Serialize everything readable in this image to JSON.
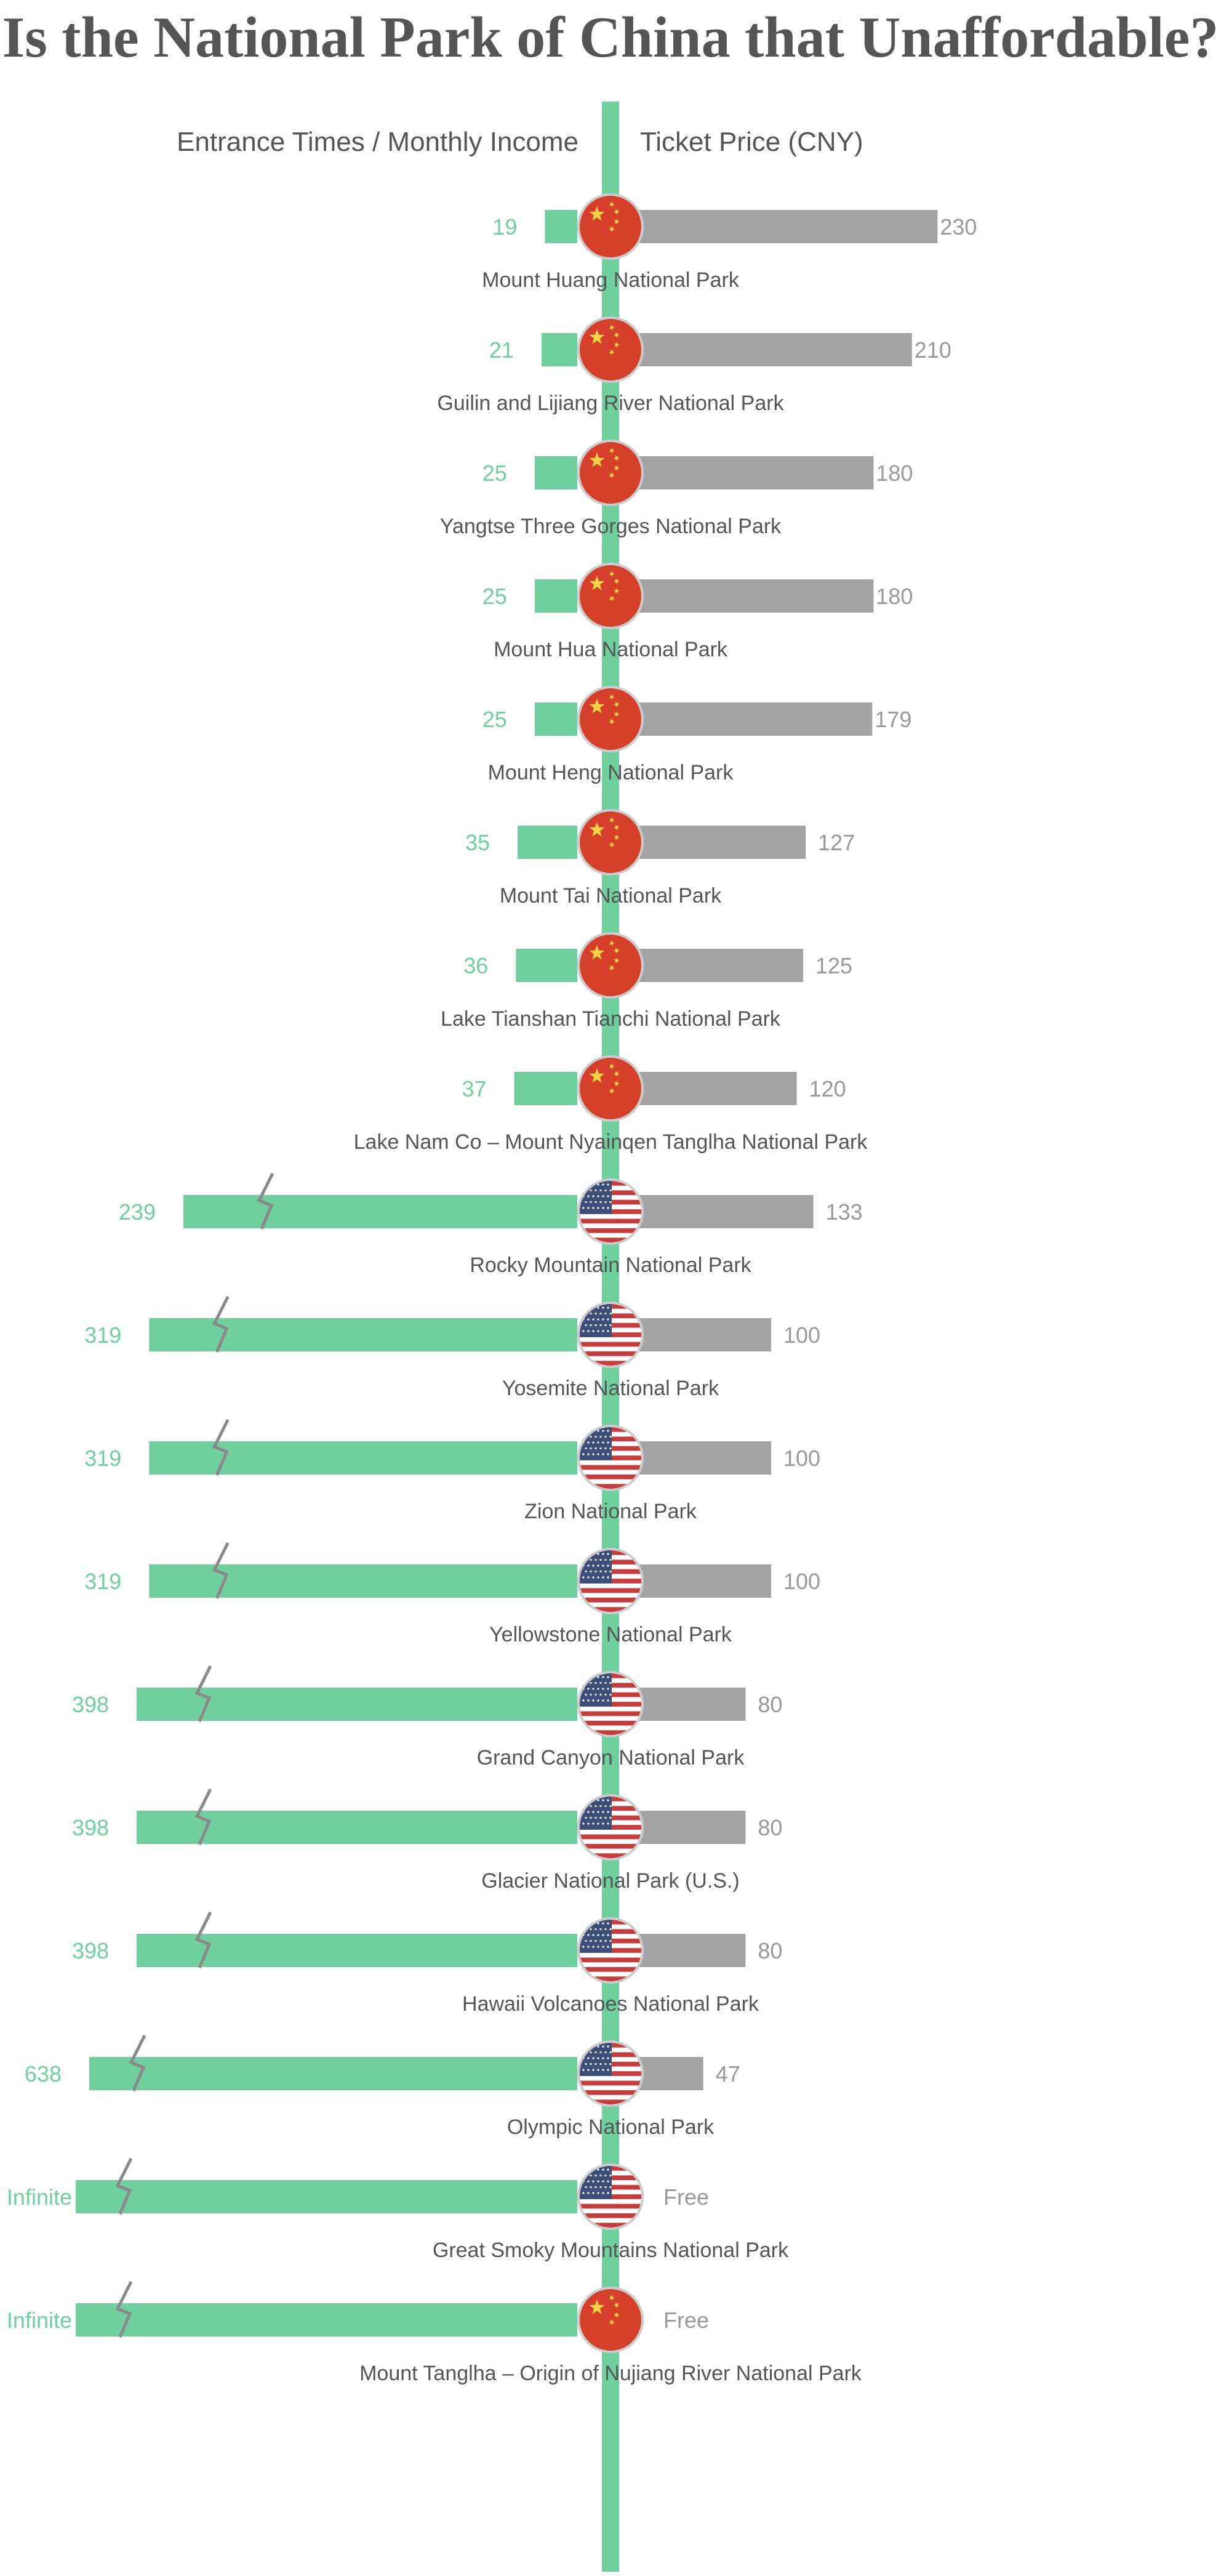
{
  "chart_data": {
    "type": "bar",
    "title": "Is the National Park of China that Unaffordable?",
    "left_header": "Entrance Times / Monthly Income",
    "right_header": "Ticket Price (CNY)",
    "colors": {
      "left_bar": "#6fcf9d",
      "right_bar": "#a3a3a3",
      "axis": "#6fcf9d",
      "title": "#555555"
    },
    "categories": [
      "Mount Huang National Park",
      "Guilin and Lijiang River National Park",
      "Yangtse Three Gorges National Park",
      "Mount Hua National Park",
      "Mount Heng National Park",
      "Mount Tai National Park",
      "Lake Tianshan Tianchi National Park",
      "Lake Nam Co – Mount Nyainqen Tanglha National Park",
      "Rocky Mountain National Park",
      "Yosemite National Park",
      "Zion National Park",
      "Yellowstone National Park",
      "Grand Canyon National Park",
      "Glacier National Park (U.S.)",
      "Hawaii Volcanoes National Park",
      "Olympic National Park",
      "Great Smoky Mountains National Park",
      "Mount Tanglha – Origin of Nujiang River National Park"
    ],
    "countries": [
      "china",
      "china",
      "china",
      "china",
      "china",
      "china",
      "china",
      "china",
      "usa",
      "usa",
      "usa",
      "usa",
      "usa",
      "usa",
      "usa",
      "usa",
      "usa",
      "china"
    ],
    "series": [
      {
        "values": [
          19,
          21,
          25,
          25,
          25,
          35,
          36,
          37,
          239,
          319,
          319,
          319,
          398,
          398,
          398,
          638,
          null,
          null
        ],
        "labels": [
          "19",
          "21",
          "25",
          "25",
          "25",
          "35",
          "36",
          "37",
          "239",
          "319",
          "319",
          "319",
          "398",
          "398",
          "398",
          "638",
          "Infinite",
          "Infinite"
        ]
      },
      {
        "values": [
          230,
          210,
          180,
          180,
          179,
          127,
          125,
          120,
          133,
          100,
          100,
          100,
          80,
          80,
          80,
          47,
          0,
          0
        ],
        "labels": [
          "230",
          "210",
          "180",
          "180",
          "179",
          "127",
          "125",
          "120",
          "133",
          "100",
          "100",
          "100",
          "80",
          "80",
          "80",
          "47",
          "Free",
          "Free"
        ]
      }
    ],
    "flag_icons": {
      "china": "china-flag-icon",
      "usa": "usa-flag-icon"
    },
    "axis_break_icon": "axis-break-icon"
  }
}
